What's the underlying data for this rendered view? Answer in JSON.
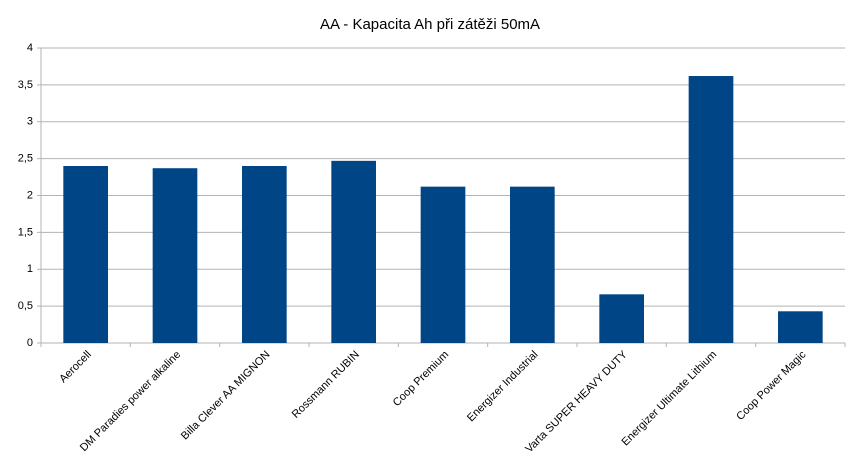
{
  "chart_data": {
    "type": "bar",
    "title": "AA - Kapacita Ah při zátěži 50mA",
    "categories": [
      "Aerocell",
      "DM Paradies power alkaline",
      "Billa Clever AA MIGNON",
      "Rossmann RUBIN",
      "Coop Premium",
      "Energizer Industrial",
      "Varta SUPER HEAVY DUTY",
      "Energizer Ultimate Lithium",
      "Coop Power Magic"
    ],
    "values": [
      2.4,
      2.37,
      2.4,
      2.47,
      2.12,
      2.12,
      0.66,
      3.62,
      0.43
    ],
    "color": "#004586",
    "ylim": [
      0,
      4
    ],
    "yticks": [
      0,
      {
        "value": 0.5,
        "label": "0,5"
      },
      1,
      {
        "value": 1.5,
        "label": "1,5"
      },
      2,
      {
        "value": 2.5,
        "label": "2,5"
      },
      3,
      {
        "value": 3.5,
        "label": "3,5"
      },
      4
    ],
    "grid": true
  }
}
